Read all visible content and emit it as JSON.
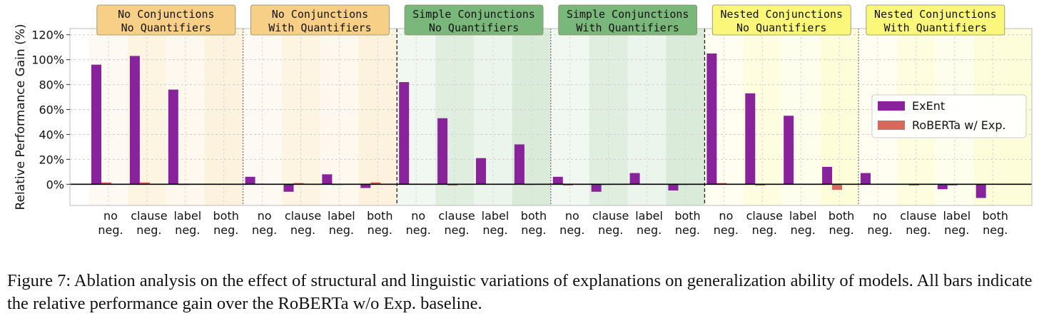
{
  "chart_data": {
    "type": "bar",
    "ylabel": "Relative Performance Gain (%)",
    "xlabel": "",
    "ylim": [
      -17,
      125
    ],
    "yticks": [
      0,
      20,
      40,
      60,
      80,
      100,
      120
    ],
    "ytick_labels": [
      "0%",
      "20%",
      "40%",
      "60%",
      "80%",
      "100%",
      "120%"
    ],
    "grid": true,
    "legend_position": "right",
    "groups": [
      {
        "title": [
          "No Conjunctions",
          "No Quantifiers"
        ],
        "color": "#f8cf86"
      },
      {
        "title": [
          "No Conjunctions",
          "With Quantifiers"
        ],
        "color": "#f8cf86"
      },
      {
        "title": [
          "Simple Conjunctions",
          "No Quantifiers"
        ],
        "color": "#7ab77b"
      },
      {
        "title": [
          "Simple Conjunctions",
          "With Quantifiers"
        ],
        "color": "#7ab77b"
      },
      {
        "title": [
          "Nested Conjunctions",
          "No Quantifiers"
        ],
        "color": "#fbf77a"
      },
      {
        "title": [
          "Nested Conjunctions",
          "With Quantifiers"
        ],
        "color": "#fbf77a"
      }
    ],
    "subcategories": [
      [
        "no",
        "neg."
      ],
      [
        "clause",
        "neg."
      ],
      [
        "label",
        "neg."
      ],
      [
        "both",
        "neg."
      ]
    ],
    "series": [
      {
        "name": "ExEnt",
        "color": "#88239c",
        "values": [
          96,
          103,
          76,
          0,
          6,
          -6,
          8,
          -3,
          82,
          53,
          21,
          32,
          6,
          -6,
          9,
          -5,
          105,
          73,
          55,
          14,
          9,
          0,
          -4,
          -11
        ]
      },
      {
        "name": "RoBERTa w/ Exp.",
        "color": "#d9675f",
        "values": [
          1.5,
          1.5,
          -0.5,
          0,
          0.5,
          1,
          -0.5,
          1.5,
          0.5,
          -1,
          0,
          -0.5,
          -1,
          -0.5,
          0.5,
          -0.5,
          1,
          -1,
          0,
          -4.5,
          0,
          -1,
          -1,
          0
        ]
      }
    ]
  },
  "caption": "Figure 7: Ablation analysis on the effect of structural and linguistic variations of explanations on generalization ability of models. All bars indicate the relative performance gain over the RoBERTa w/o Exp. baseline."
}
